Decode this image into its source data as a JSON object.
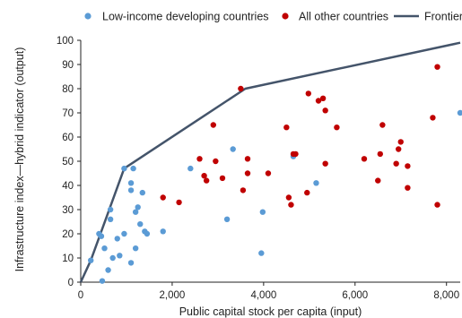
{
  "chart_data": {
    "type": "scatter",
    "title": "",
    "xlabel": "Public capital stock per capita (input)",
    "ylabel": "Infrastructure index—hybrid indicator (output)",
    "xlim": [
      0,
      8300
    ],
    "ylim": [
      0,
      100
    ],
    "x_ticks": [
      0,
      2000,
      4000,
      6000,
      8000
    ],
    "x_tick_labels": [
      "0",
      "2,000",
      "4,000",
      "6,000",
      "8,000"
    ],
    "y_ticks": [
      0,
      10,
      20,
      30,
      40,
      50,
      60,
      70,
      80,
      90,
      100
    ],
    "y_tick_labels": [
      "0",
      "10",
      "20",
      "30",
      "40",
      "50",
      "60",
      "70",
      "80",
      "90",
      "100"
    ],
    "legend_placement": "top",
    "grid": false,
    "series": [
      {
        "name": "Low-income developing countries",
        "kind": "scatter",
        "color": "#5b9bd5",
        "points": [
          [
            220,
            9
          ],
          [
            400,
            20
          ],
          [
            450,
            19
          ],
          [
            470,
            0.5
          ],
          [
            520,
            14
          ],
          [
            600,
            5
          ],
          [
            650,
            26
          ],
          [
            650,
            30
          ],
          [
            700,
            10
          ],
          [
            800,
            18
          ],
          [
            850,
            11
          ],
          [
            950,
            20
          ],
          [
            950,
            47
          ],
          [
            1100,
            8
          ],
          [
            1100,
            38
          ],
          [
            1100,
            41
          ],
          [
            1150,
            47
          ],
          [
            1200,
            29
          ],
          [
            1200,
            14
          ],
          [
            1250,
            31
          ],
          [
            1300,
            24
          ],
          [
            1350,
            37
          ],
          [
            1400,
            21
          ],
          [
            1450,
            20
          ],
          [
            1800,
            21
          ],
          [
            2400,
            47
          ],
          [
            3200,
            26
          ],
          [
            3330,
            55
          ],
          [
            3950,
            12
          ],
          [
            3980,
            29
          ],
          [
            4650,
            52
          ],
          [
            5150,
            41
          ],
          [
            8300,
            70
          ]
        ]
      },
      {
        "name": "All other countries",
        "kind": "scatter",
        "color": "#c00000",
        "points": [
          [
            1800,
            35
          ],
          [
            2150,
            33
          ],
          [
            2600,
            51
          ],
          [
            2700,
            44
          ],
          [
            2750,
            42
          ],
          [
            2900,
            65
          ],
          [
            2950,
            50
          ],
          [
            3100,
            43
          ],
          [
            3500,
            80
          ],
          [
            3550,
            38
          ],
          [
            3650,
            45
          ],
          [
            3650,
            51
          ],
          [
            4100,
            45
          ],
          [
            4500,
            64
          ],
          [
            4550,
            35
          ],
          [
            4600,
            32
          ],
          [
            4650,
            53
          ],
          [
            4700,
            53
          ],
          [
            4950,
            37
          ],
          [
            4980,
            78
          ],
          [
            5200,
            75
          ],
          [
            5300,
            76
          ],
          [
            5350,
            71
          ],
          [
            5350,
            49
          ],
          [
            5600,
            64
          ],
          [
            6200,
            51
          ],
          [
            6500,
            42
          ],
          [
            6550,
            53
          ],
          [
            6600,
            65
          ],
          [
            6900,
            49
          ],
          [
            6950,
            55
          ],
          [
            7000,
            58
          ],
          [
            7150,
            48
          ],
          [
            7150,
            39
          ],
          [
            7700,
            68
          ],
          [
            7800,
            89
          ],
          [
            7800,
            32
          ]
        ]
      },
      {
        "name": "Frontier",
        "kind": "line",
        "color": "#44546a",
        "points": [
          [
            0,
            0
          ],
          [
            220,
            9
          ],
          [
            950,
            47
          ],
          [
            3600,
            80
          ],
          [
            8300,
            99
          ]
        ]
      }
    ]
  }
}
